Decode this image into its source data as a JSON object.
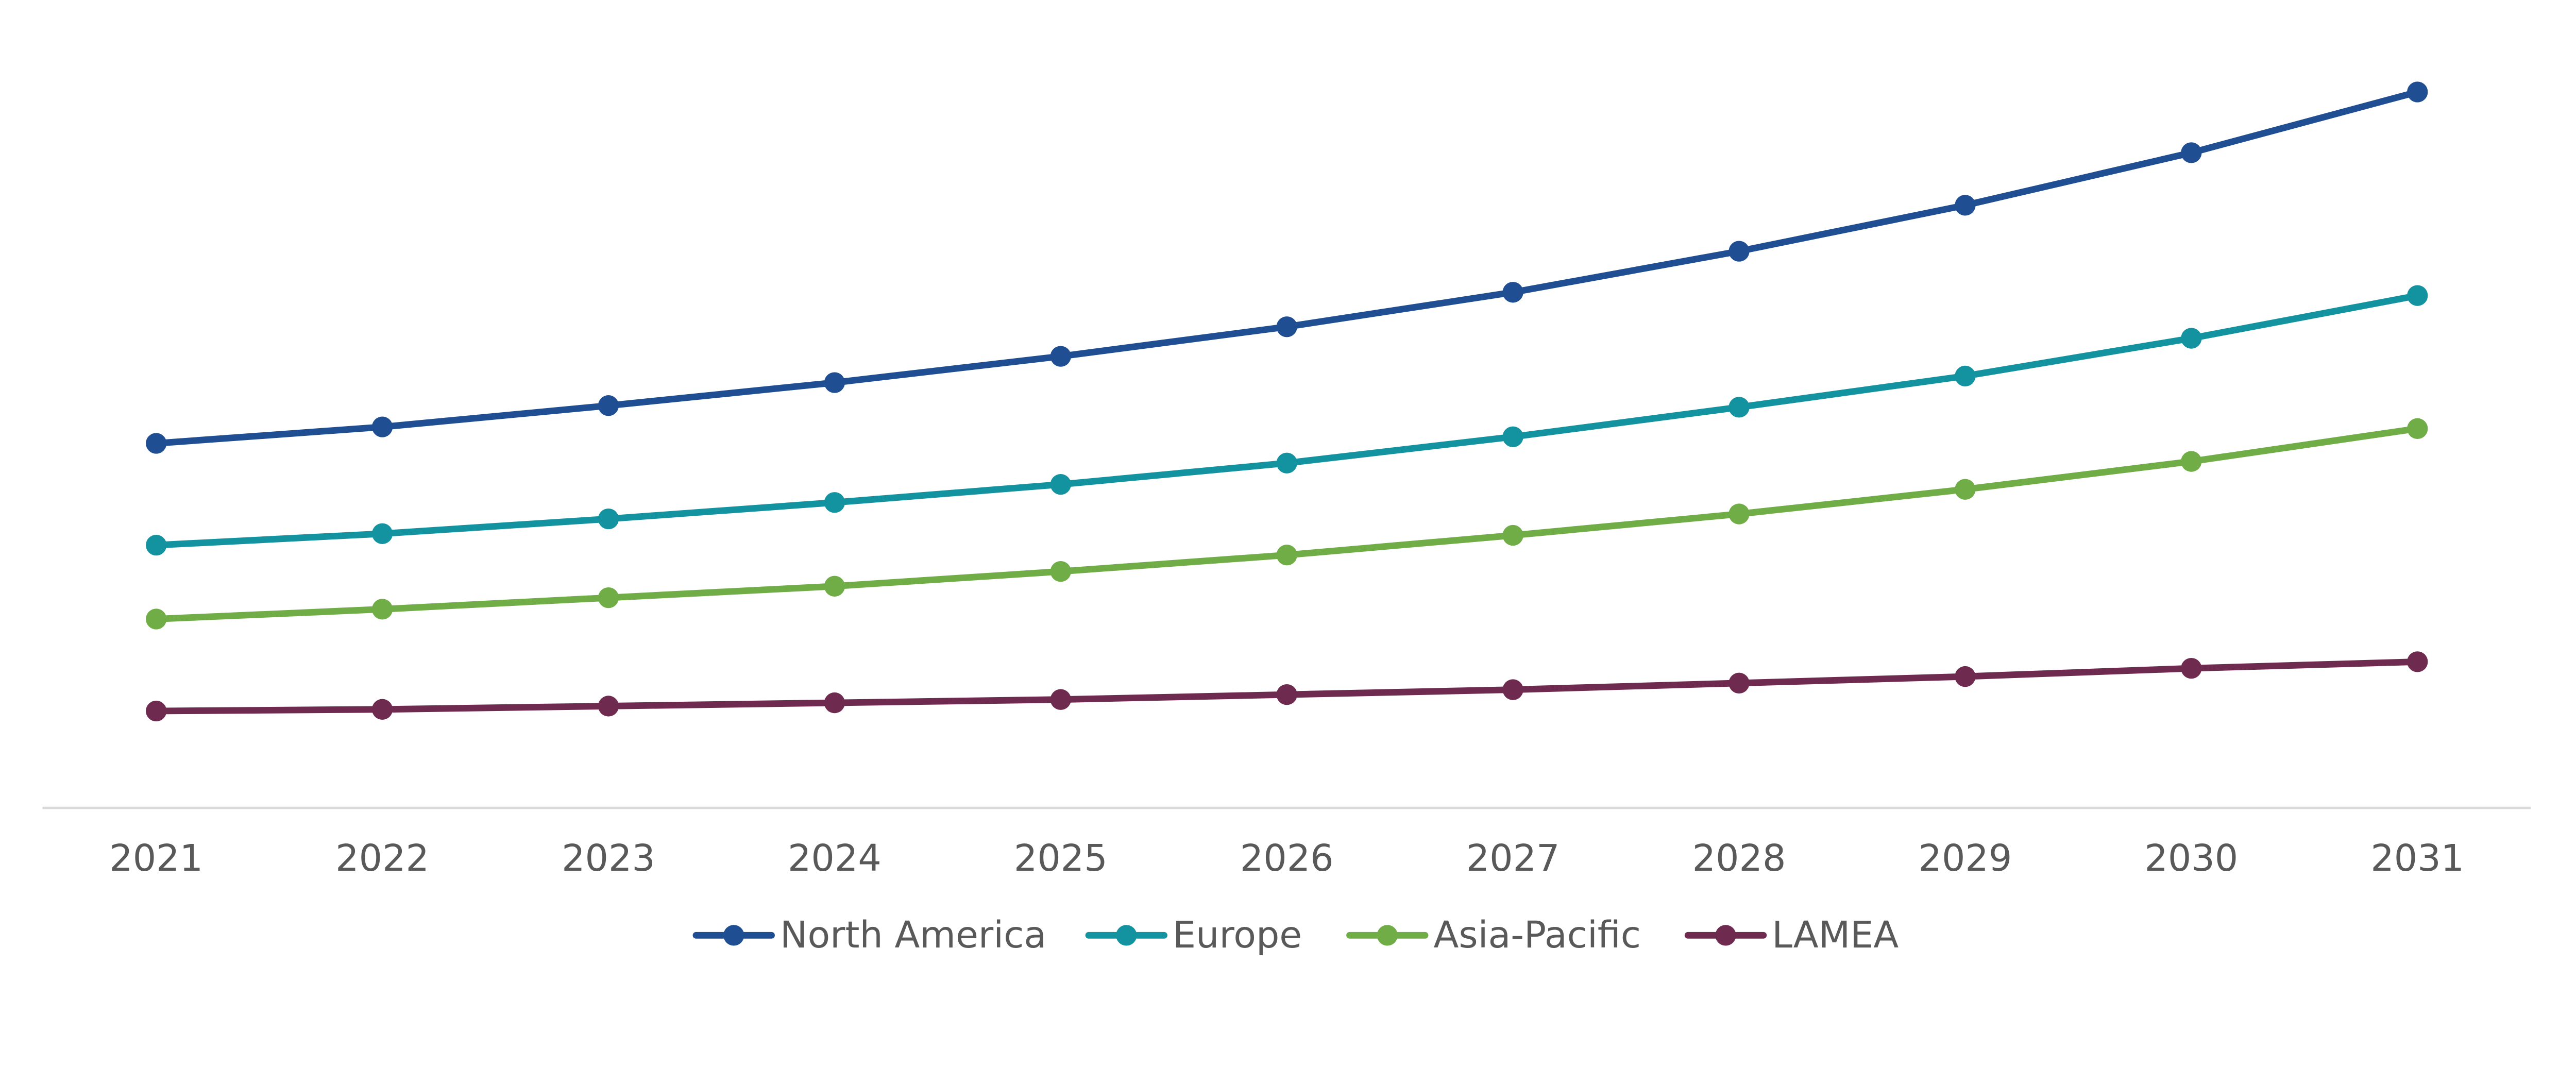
{
  "chart_data": {
    "type": "line",
    "title": "",
    "xlabel": "",
    "ylabel": "",
    "x": [
      "2021",
      "2022",
      "2023",
      "2024",
      "2025",
      "2026",
      "2027",
      "2028",
      "2029",
      "2030",
      "2031"
    ],
    "ylim": [
      0,
      492
    ],
    "grid": false,
    "legend_position": "bottom",
    "series": [
      {
        "name": "North America",
        "color": "#1F4E93",
        "values": [
          222,
          232,
          245,
          259,
          275,
          293,
          314,
          339,
          367,
          399,
          436
        ]
      },
      {
        "name": "Europe",
        "color": "#1393A0",
        "values": [
          160,
          167,
          176,
          186,
          197,
          210,
          226,
          244,
          263,
          286,
          312
        ]
      },
      {
        "name": "Asia-Pacific",
        "color": "#70AD47",
        "values": [
          115,
          121,
          128,
          135,
          144,
          154,
          166,
          179,
          194,
          211,
          231
        ]
      },
      {
        "name": "LAMEA",
        "color": "#6E2B4F",
        "values": [
          59,
          60,
          62,
          64,
          66,
          69,
          72,
          76,
          80,
          85,
          89
        ]
      }
    ]
  }
}
